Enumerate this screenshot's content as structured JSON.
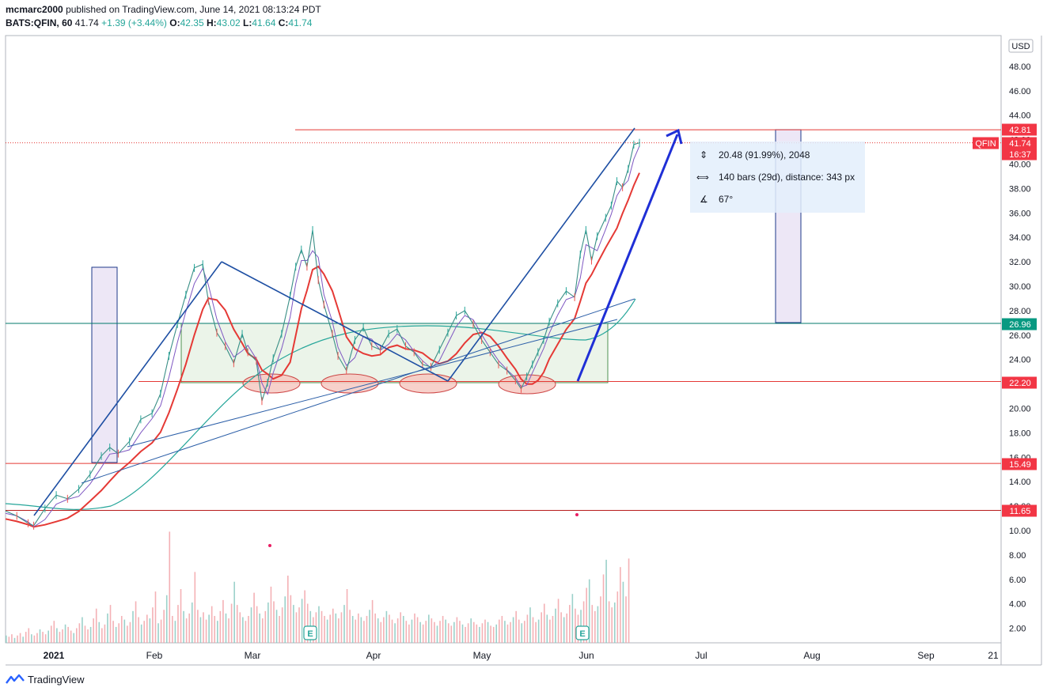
{
  "header": {
    "publisher": "mcmarc2000",
    "published_text": "published on TradingView.com, June 14, 2021 08:13:24 PDT",
    "symbol": "BATS:QFIN, 60",
    "last": "41.74",
    "change": "+1.39 (+3.44%)",
    "o_label": "O:",
    "o": "42.35",
    "h_label": "H:",
    "h": "43.02",
    "l_label": "L:",
    "l": "41.64",
    "c_label": "C:",
    "c": "41.74"
  },
  "footer": {
    "brand": "TradingView"
  },
  "measure": {
    "line1": "20.48 (91.99%), 2048",
    "line2": "140 bars (29d), distance: 343 px",
    "line3": "67°"
  },
  "chart_data": {
    "type": "candlestick",
    "currency": "USD",
    "ylim": [
      0,
      50
    ],
    "y_ticks": [
      "2.00",
      "4.00",
      "6.00",
      "8.00",
      "10.00",
      "12.00",
      "14.00",
      "16.00",
      "18.00",
      "20.00",
      "22.00",
      "24.00",
      "26.00",
      "28.00",
      "30.00",
      "32.00",
      "34.00",
      "36.00",
      "38.00",
      "40.00",
      "42.00",
      "44.00",
      "46.00",
      "48.00"
    ],
    "x_ticks": [
      "2021",
      "Feb",
      "Mar",
      "Apr",
      "May",
      "Jun",
      "Jul",
      "Aug",
      "Sep",
      "21"
    ],
    "price_labels": [
      {
        "text": "42.81",
        "color": "#f23645"
      },
      {
        "text": "41.74",
        "color": "#f23645"
      },
      {
        "text": "16:37",
        "color": "#f23645"
      },
      {
        "text": "26.96",
        "color": "#089981"
      },
      {
        "text": "22.20",
        "color": "#f23645"
      },
      {
        "text": "15.49",
        "color": "#f23645"
      },
      {
        "text": "11.65",
        "color": "#f23645"
      }
    ],
    "symbol_tag": "QFIN",
    "horizontal_levels": [
      42.81,
      26.96,
      22.2,
      15.49,
      11.65
    ],
    "last_price": 41.74,
    "earnings_marker": "E",
    "price_path": [
      [
        0,
        11.6
      ],
      [
        4,
        11.2
      ],
      [
        8,
        10.6
      ],
      [
        10,
        10.4
      ],
      [
        14,
        11.8
      ],
      [
        18,
        12.9
      ],
      [
        22,
        12.6
      ],
      [
        26,
        13.4
      ],
      [
        30,
        14.6
      ],
      [
        34,
        16.1
      ],
      [
        37,
        16.8
      ],
      [
        40,
        16.3
      ],
      [
        44,
        17.3
      ],
      [
        48,
        19.1
      ],
      [
        52,
        19.6
      ],
      [
        55,
        21.2
      ],
      [
        58,
        24.3
      ],
      [
        61,
        26.9
      ],
      [
        64,
        29.3
      ],
      [
        67,
        31.5
      ],
      [
        70,
        31.8
      ],
      [
        72,
        28.8
      ],
      [
        75,
        26.2
      ],
      [
        78,
        25.1
      ],
      [
        81,
        23.7
      ],
      [
        84,
        26.1
      ],
      [
        86,
        24.6
      ],
      [
        89,
        23.9
      ],
      [
        91,
        20.6
      ],
      [
        93,
        22.1
      ],
      [
        95,
        24.1
      ],
      [
        98,
        26.1
      ],
      [
        101,
        29.2
      ],
      [
        103,
        31.6
      ],
      [
        105,
        33.0
      ],
      [
        107,
        31.6
      ],
      [
        109,
        34.6
      ],
      [
        111,
        30.5
      ],
      [
        113,
        28.5
      ],
      [
        116,
        26.1
      ],
      [
        118,
        24.3
      ],
      [
        121,
        23.1
      ],
      [
        124,
        25.6
      ],
      [
        127,
        26.6
      ],
      [
        130,
        25.1
      ],
      [
        133,
        24.8
      ],
      [
        136,
        26.1
      ],
      [
        139,
        26.5
      ],
      [
        142,
        25.1
      ],
      [
        145,
        24.6
      ],
      [
        148,
        23.6
      ],
      [
        151,
        23.4
      ],
      [
        154,
        24.8
      ],
      [
        157,
        26.2
      ],
      [
        160,
        27.6
      ],
      [
        163,
        28.0
      ],
      [
        166,
        26.9
      ],
      [
        169,
        25.6
      ],
      [
        172,
        24.6
      ],
      [
        175,
        23.6
      ],
      [
        178,
        23.1
      ],
      [
        181,
        22.3
      ],
      [
        183,
        21.6
      ],
      [
        185,
        22.6
      ],
      [
        187,
        23.6
      ],
      [
        189,
        24.6
      ],
      [
        191,
        25.6
      ],
      [
        193,
        27.1
      ],
      [
        196,
        28.6
      ],
      [
        199,
        29.6
      ],
      [
        202,
        29.1
      ],
      [
        204,
        32.6
      ],
      [
        206,
        34.6
      ],
      [
        208,
        32.1
      ],
      [
        210,
        34.1
      ],
      [
        213,
        35.6
      ],
      [
        215,
        36.6
      ],
      [
        217,
        38.6
      ],
      [
        219,
        38.1
      ],
      [
        221,
        39.6
      ],
      [
        223,
        41.6
      ],
      [
        225,
        41.74
      ]
    ],
    "volume": [
      0.6,
      0.5,
      0.7,
      0.4,
      0.6,
      0.8,
      0.5,
      0.9,
      1.2,
      0.7,
      0.6,
      0.8,
      1.1,
      0.9,
      0.7,
      1.0,
      1.4,
      1.8,
      1.2,
      0.9,
      1.1,
      1.5,
      1.3,
      1.0,
      0.8,
      1.2,
      1.6,
      2.1,
      1.4,
      1.1,
      1.3,
      2.0,
      2.8,
      1.7,
      1.2,
      1.5,
      2.4,
      3.1,
      1.8,
      1.3,
      1.6,
      2.2,
      1.9,
      1.4,
      1.7,
      2.6,
      3.4,
      2.1,
      1.5,
      1.8,
      2.3,
      2.0,
      2.9,
      4.2,
      1.6,
      1.9,
      2.7,
      3.9,
      9.1,
      2.2,
      1.8,
      3.1,
      4.4,
      2.6,
      2.0,
      2.4,
      3.3,
      5.8,
      2.7,
      2.1,
      2.5,
      1.9,
      2.3,
      3.0,
      2.2,
      1.8,
      2.6,
      3.5,
      2.4,
      2.0,
      3.2,
      5.0,
      3.1,
      2.5,
      2.1,
      1.8,
      2.2,
      2.9,
      4.1,
      3.0,
      2.4,
      2.0,
      2.6,
      3.3,
      4.6,
      3.4,
      2.7,
      2.2,
      2.9,
      3.8,
      5.5,
      3.9,
      3.1,
      2.5,
      2.9,
      3.6,
      4.3,
      3.2,
      2.6,
      2.1,
      2.5,
      3.0,
      2.6,
      2.2,
      1.9,
      2.3,
      2.8,
      2.4,
      2.0,
      2.5,
      3.1,
      4.4,
      2.7,
      2.2,
      1.9,
      2.4,
      2.1,
      1.8,
      2.2,
      2.7,
      3.5,
      2.4,
      2.0,
      1.7,
      2.1,
      2.6,
      2.3,
      1.9,
      1.6,
      2.0,
      2.5,
      2.2,
      1.8,
      1.5,
      1.9,
      2.4,
      2.1,
      1.7,
      1.5,
      1.8,
      2.3,
      2.0,
      1.7,
      1.4,
      1.8,
      2.2,
      1.9,
      1.6,
      1.4,
      1.7,
      2.1,
      1.8,
      1.5,
      1.3,
      1.6,
      2.0,
      1.7,
      1.5,
      1.3,
      1.6,
      1.9,
      1.7,
      1.4,
      1.3,
      1.5,
      1.9,
      2.2,
      1.8,
      1.5,
      1.7,
      2.1,
      2.6,
      1.9,
      1.6,
      1.8,
      2.3,
      2.9,
      2.1,
      1.7,
      1.9,
      2.5,
      3.2,
      2.3,
      1.9,
      2.2,
      2.8,
      3.6,
      2.5,
      2.1,
      2.4,
      3.1,
      4.0,
      2.8,
      2.3,
      2.7,
      3.4,
      4.5,
      5.2,
      3.1,
      2.6,
      3.0,
      3.8,
      5.6,
      6.8,
      3.4,
      2.9,
      3.3,
      4.2,
      6.2,
      5.0,
      3.8,
      6.9
    ]
  }
}
